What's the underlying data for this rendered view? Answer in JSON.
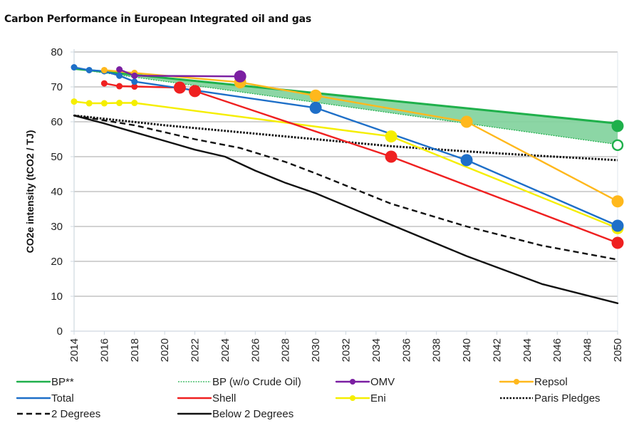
{
  "chart_data": {
    "type": "line",
    "title": "Carbon Performance in European Integrated oil and gas",
    "xlabel": "",
    "ylabel": "CO2e intensity (tCO2 / TJ)",
    "xlim": [
      2014,
      2050
    ],
    "ylim": [
      0,
      80
    ],
    "y_ticks": [
      0,
      10,
      20,
      30,
      40,
      50,
      60,
      70,
      80
    ],
    "x_ticks": [
      2014,
      2016,
      2018,
      2020,
      2022,
      2024,
      2026,
      2028,
      2030,
      2032,
      2034,
      2036,
      2038,
      2040,
      2042,
      2044,
      2046,
      2048,
      2050
    ],
    "grid": "horizontal",
    "legend_position": "bottom",
    "band": {
      "name": "BP range (with vs w/o Crude Oil)",
      "color": "#7fd19b",
      "upper_series": "BP**",
      "lower_series": "BP (w/o Crude Oil)"
    },
    "series": [
      {
        "name": "BP**",
        "color": "#1fb04b",
        "style": "solid",
        "points": [
          [
            2014,
            75.2
          ],
          [
            2050,
            59.5
          ]
        ],
        "markers": [],
        "end_marker": {
          "x": 2050,
          "y": 58.8,
          "filled": true
        }
      },
      {
        "name": "BP (w/o Crude Oil)",
        "color": "#1fb04b",
        "style": "dotted-thin",
        "points": [
          [
            2014,
            75.2
          ],
          [
            2050,
            53.5
          ]
        ],
        "markers": [],
        "end_marker": {
          "x": 2050,
          "y": 53.3,
          "filled": false
        }
      },
      {
        "name": "OMV",
        "color": "#7b1fa2",
        "style": "solid",
        "points": [
          [
            2017,
            75.0
          ],
          [
            2018,
            73.2
          ],
          [
            2025,
            73.0
          ]
        ],
        "markers": [
          [
            2017,
            75.0
          ],
          [
            2018,
            73.2
          ]
        ],
        "big_markers": [
          [
            2025,
            73.0
          ]
        ]
      },
      {
        "name": "Repsol",
        "color": "#ffb81c",
        "style": "solid",
        "points": [
          [
            2016,
            74.8
          ],
          [
            2018,
            74.0
          ],
          [
            2025,
            71.3
          ],
          [
            2030,
            67.5
          ],
          [
            2040,
            60.0
          ],
          [
            2050,
            37.2
          ]
        ],
        "markers": [
          [
            2016,
            74.8
          ],
          [
            2018,
            74.0
          ]
        ],
        "big_markers": [
          [
            2025,
            71.3
          ],
          [
            2030,
            67.5
          ],
          [
            2040,
            60.0
          ],
          [
            2050,
            37.2
          ]
        ]
      },
      {
        "name": "Total",
        "color": "#1e6fc8",
        "style": "solid",
        "points": [
          [
            2014,
            75.6
          ],
          [
            2015,
            74.8
          ],
          [
            2016,
            74.5
          ],
          [
            2017,
            73.2
          ],
          [
            2018,
            71.5
          ],
          [
            2030,
            64.0
          ],
          [
            2040,
            49.0
          ],
          [
            2050,
            30.2
          ]
        ],
        "markers": [
          [
            2014,
            75.6
          ],
          [
            2015,
            74.8
          ],
          [
            2016,
            74.5
          ],
          [
            2017,
            73.2
          ],
          [
            2018,
            71.5
          ]
        ],
        "big_markers": [
          [
            2030,
            64.0
          ],
          [
            2040,
            49.0
          ],
          [
            2050,
            30.2
          ]
        ]
      },
      {
        "name": "Shell",
        "color": "#ef2020",
        "style": "solid",
        "points": [
          [
            2016,
            71.0
          ],
          [
            2017,
            70.2
          ],
          [
            2018,
            70.1
          ],
          [
            2021,
            69.8
          ],
          [
            2022,
            68.8
          ],
          [
            2035,
            50.0
          ],
          [
            2050,
            25.3
          ]
        ],
        "markers": [
          [
            2016,
            71.0
          ],
          [
            2017,
            70.2
          ],
          [
            2018,
            70.1
          ]
        ],
        "big_markers": [
          [
            2021,
            69.8
          ],
          [
            2022,
            68.8
          ],
          [
            2035,
            50.0
          ],
          [
            2050,
            25.3
          ]
        ]
      },
      {
        "name": "Eni",
        "color": "#f5ee00",
        "style": "solid",
        "points": [
          [
            2014,
            65.8
          ],
          [
            2015,
            65.3
          ],
          [
            2016,
            65.3
          ],
          [
            2017,
            65.4
          ],
          [
            2018,
            65.4
          ],
          [
            2035,
            55.8
          ],
          [
            2050,
            29.5
          ]
        ],
        "markers": [
          [
            2014,
            65.8
          ],
          [
            2015,
            65.3
          ],
          [
            2016,
            65.3
          ],
          [
            2017,
            65.4
          ],
          [
            2018,
            65.4
          ]
        ],
        "big_markers": [
          [
            2035,
            55.8
          ],
          [
            2050,
            29.5
          ]
        ]
      },
      {
        "name": "Paris Pledges",
        "color": "#111111",
        "style": "dotted",
        "points": [
          [
            2014,
            61.8
          ],
          [
            2020,
            59.0
          ],
          [
            2025,
            57.0
          ],
          [
            2030,
            55.0
          ],
          [
            2035,
            53.0
          ],
          [
            2040,
            51.5
          ],
          [
            2045,
            50.2
          ],
          [
            2050,
            49.0
          ]
        ]
      },
      {
        "name": "2 Degrees",
        "color": "#111111",
        "style": "dashed",
        "points": [
          [
            2014,
            61.8
          ],
          [
            2018,
            59.0
          ],
          [
            2022,
            55.0
          ],
          [
            2025,
            52.5
          ],
          [
            2028,
            48.5
          ],
          [
            2030,
            45.2
          ],
          [
            2035,
            36.5
          ],
          [
            2040,
            30.0
          ],
          [
            2045,
            24.5
          ],
          [
            2050,
            20.5
          ]
        ]
      },
      {
        "name": "Below 2 Degrees",
        "color": "#111111",
        "style": "solid",
        "points": [
          [
            2014,
            61.8
          ],
          [
            2016,
            59.5
          ],
          [
            2018,
            57.0
          ],
          [
            2020,
            54.5
          ],
          [
            2022,
            52.0
          ],
          [
            2024,
            50.0
          ],
          [
            2026,
            46.0
          ],
          [
            2028,
            42.5
          ],
          [
            2030,
            39.5
          ],
          [
            2035,
            30.5
          ],
          [
            2040,
            21.5
          ],
          [
            2045,
            13.5
          ],
          [
            2050,
            8.0
          ]
        ]
      }
    ],
    "legend": [
      {
        "label": "BP**",
        "series": "BP**",
        "kind": "line"
      },
      {
        "label": "BP (w/o Crude Oil)",
        "series": "BP (w/o Crude Oil)",
        "kind": "dotted"
      },
      {
        "label": "OMV",
        "series": "OMV",
        "kind": "line-marker"
      },
      {
        "label": "Repsol",
        "series": "Repsol",
        "kind": "line-marker"
      },
      {
        "label": "Total",
        "series": "Total",
        "kind": "line"
      },
      {
        "label": "Shell",
        "series": "Shell",
        "kind": "line"
      },
      {
        "label": "Eni",
        "series": "Eni",
        "kind": "line-marker"
      },
      {
        "label": "Paris Pledges",
        "series": "Paris Pledges",
        "kind": "dotted"
      },
      {
        "label": "2 Degrees",
        "series": "2 Degrees",
        "kind": "dashed"
      },
      {
        "label": "Below 2 Degrees",
        "series": "Below 2 Degrees",
        "kind": "line"
      }
    ]
  }
}
